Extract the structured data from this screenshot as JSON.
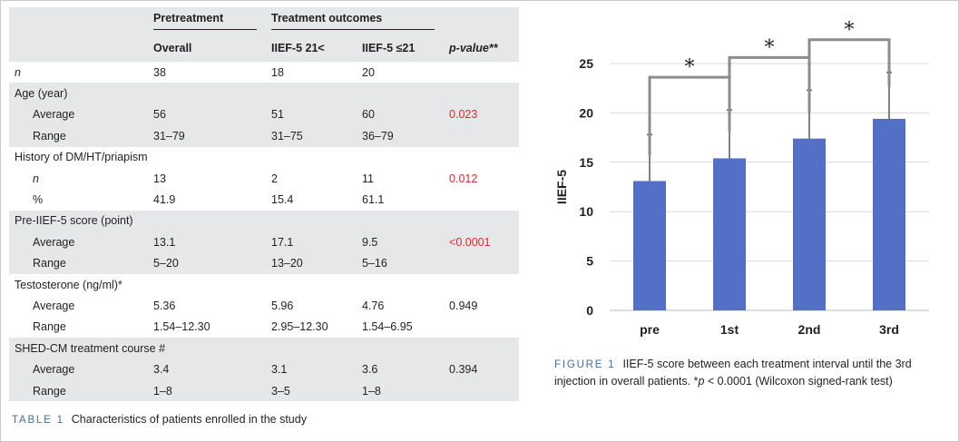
{
  "table": {
    "headers": {
      "pretreatment": "Pretreatment",
      "treatment_outcomes": "Treatment outcomes",
      "overall": "Overall",
      "iief_gt": "IIEF-5 21<",
      "iief_le": "IIEF-5 ≤21",
      "pvalue": "p-value**"
    },
    "rows": [
      {
        "label": "n",
        "overall": "38",
        "gt": "18",
        "le": "20",
        "p": ""
      },
      {
        "label": "Age (year)",
        "overall": "",
        "gt": "",
        "le": "",
        "p": ""
      },
      {
        "label": "Average",
        "overall": "56",
        "gt": "51",
        "le": "60",
        "p": "0.023"
      },
      {
        "label": "Range",
        "overall": "31–79",
        "gt": "31–75",
        "le": "36–79",
        "p": ""
      },
      {
        "label": "History of DM/HT/priapism",
        "overall": "",
        "gt": "",
        "le": "",
        "p": ""
      },
      {
        "label": "n",
        "overall": "13",
        "gt": "2",
        "le": "11",
        "p": "0.012"
      },
      {
        "label": "%",
        "overall": "41.9",
        "gt": "15.4",
        "le": "61.1",
        "p": ""
      },
      {
        "label": "Pre-IIEF-5 score (point)",
        "overall": "",
        "gt": "",
        "le": "",
        "p": ""
      },
      {
        "label": "Average",
        "overall": "13.1",
        "gt": "17.1",
        "le": "9.5",
        "p": "<0.0001"
      },
      {
        "label": "Range",
        "overall": "5–20",
        "gt": "13–20",
        "le": "5–16",
        "p": ""
      },
      {
        "label": "Testosterone (ng/ml)*",
        "overall": "",
        "gt": "",
        "le": "",
        "p": ""
      },
      {
        "label": "Average",
        "overall": "5.36",
        "gt": "5.96",
        "le": "4.76",
        "p": "0.949"
      },
      {
        "label": "Range",
        "overall": "1.54–12.30",
        "gt": "2.95–12.30",
        "le": "1.54–6.95",
        "p": ""
      },
      {
        "label": "SHED-CM treatment course #",
        "overall": "",
        "gt": "",
        "le": "",
        "p": ""
      },
      {
        "label": "Average",
        "overall": "3.4",
        "gt": "3.1",
        "le": "3.6",
        "p": "0.394"
      },
      {
        "label": "Range",
        "overall": "1–8",
        "gt": "3–5",
        "le": "1–8",
        "p": ""
      }
    ],
    "caption_label": "TABLE 1",
    "caption_text": "Characteristics of patients enrolled in the study"
  },
  "figure": {
    "caption_label": "FIGURE 1",
    "caption_text_1": "IIEF-5 score between each treatment interval until the 3rd injection in overall patients. *",
    "caption_p": "p",
    "caption_text_2": " < 0.0001 (Wilcoxon signed-rank test)"
  },
  "chart_data": {
    "type": "bar",
    "categories": [
      "pre",
      "1st",
      "2nd",
      "3rd"
    ],
    "values": [
      13.1,
      15.4,
      17.4,
      19.4
    ],
    "error_upper": [
      17.8,
      20.3,
      22.3,
      24.1
    ],
    "ylabel": "IIEF-5",
    "xlabel": "",
    "ylim": [
      0,
      25
    ],
    "yticks": [
      0,
      5,
      10,
      15,
      20,
      25
    ],
    "grid": true,
    "bar_color": "#5470c6",
    "significance_brackets": [
      {
        "from": "pre",
        "to": "1st",
        "label": "*"
      },
      {
        "from": "1st",
        "to": "2nd",
        "label": "*"
      },
      {
        "from": "2nd",
        "to": "3rd",
        "label": "*"
      }
    ]
  }
}
